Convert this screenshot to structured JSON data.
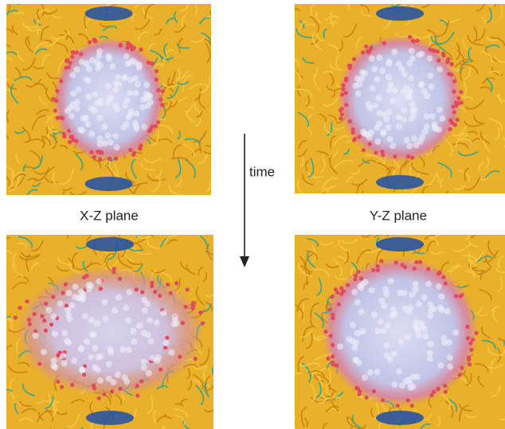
{
  "arrow_label": "time",
  "panels": {
    "left_caption": "X-Z plane",
    "right_caption": "Y-Z plane"
  }
}
